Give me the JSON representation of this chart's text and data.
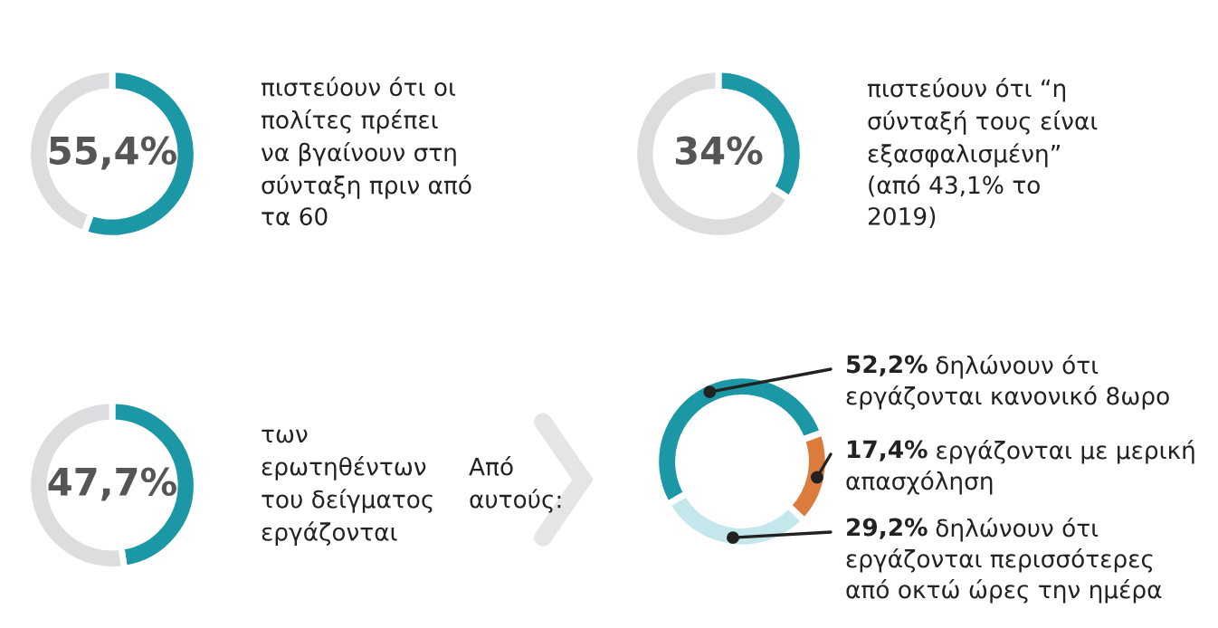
{
  "chart_data": [
    {
      "type": "donut",
      "categories": [
        null,
        null
      ],
      "values": [
        55.4,
        44.6
      ],
      "colors": [
        "#1b97a5",
        "#dcdddf"
      ],
      "value_labels": [
        "55,4%",
        null
      ],
      "annotations": [
        "πιστεύουν ότι οι\nπολίτες πρέπει\nνα βγαίνουν στη\nσύνταξη πριν από\nτα 60"
      ]
    },
    {
      "type": "donut",
      "categories": [
        null,
        null
      ],
      "values": [
        34,
        66
      ],
      "colors": [
        "#1b97a5",
        "#dcdddf"
      ],
      "value_labels": [
        "34%",
        null
      ],
      "annotations": [
        "πιστεύουν ότι “η\nσύνταξή τους είναι\nεξασφαλισμένη”\n(από 43,1% το\n2019)"
      ]
    },
    {
      "type": "donut",
      "categories": [
        null,
        null
      ],
      "values": [
        47.7,
        52.3
      ],
      "colors": [
        "#1b97a5",
        "#dcdddf"
      ],
      "value_labels": [
        "47,7%",
        null
      ],
      "annotations": [
        "των\nερωτηθέντων\nτου δείγματος\nεργάζονται",
        "Από\nαυτούς:"
      ]
    },
    {
      "type": "donut",
      "categories": [
        "δηλώνουν ότι\nεργάζονται κανονικό 8ωρο",
        "εργάζονται με μερική\nαπασχόληση",
        "δηλώνουν ότι\nεργάζονται περισσότερες\nαπό οκτώ ώρες την ημέρα"
      ],
      "values": [
        52.2,
        17.4,
        29.2
      ],
      "colors": [
        "#1b97a5",
        "#db7c3c",
        "#c3e7ea"
      ],
      "value_labels": [
        "52,2%",
        "17,4%",
        "29,2%"
      ]
    }
  ]
}
